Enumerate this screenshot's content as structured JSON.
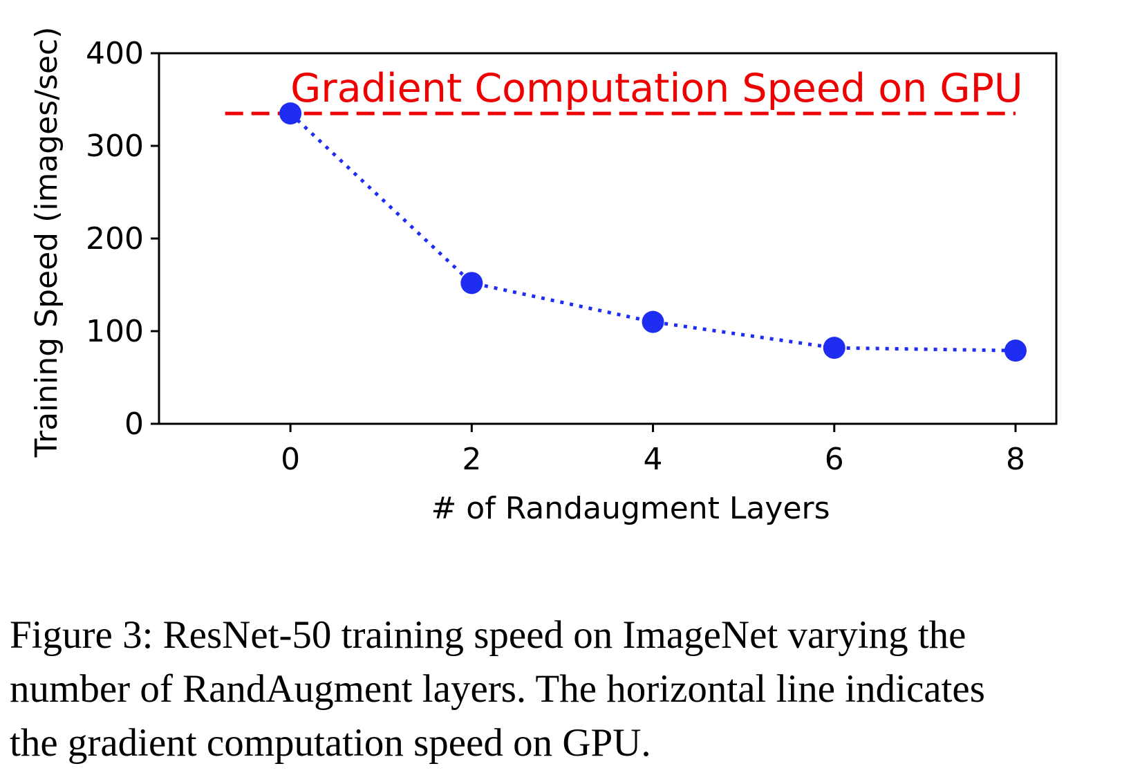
{
  "chart_data": {
    "type": "line",
    "x": [
      0,
      2,
      4,
      6,
      8
    ],
    "series": [
      {
        "values": [
          335,
          152,
          110,
          82,
          79
        ],
        "color": "#1f2df2",
        "style": "dotted",
        "marker": "circle"
      }
    ],
    "reference_line": {
      "y": 335,
      "color": "#ee0000",
      "style": "dashed",
      "label": "Gradient Computation Speed on GPU"
    },
    "xlabel": "# of Randaugment Layers",
    "ylabel": "Training Speed (images/sec)",
    "xticks": [
      0,
      2,
      4,
      6,
      8
    ],
    "yticks": [
      0,
      100,
      200,
      300,
      400
    ],
    "xlim": [
      -1.45,
      8.45
    ],
    "ylim": [
      0,
      400
    ],
    "grid": false
  },
  "caption": "Figure 3: ResNet-50 training speed on ImageNet varying the\nnumber of RandAugment layers. The horizontal line indicates\nthe gradient computation speed on GPU."
}
